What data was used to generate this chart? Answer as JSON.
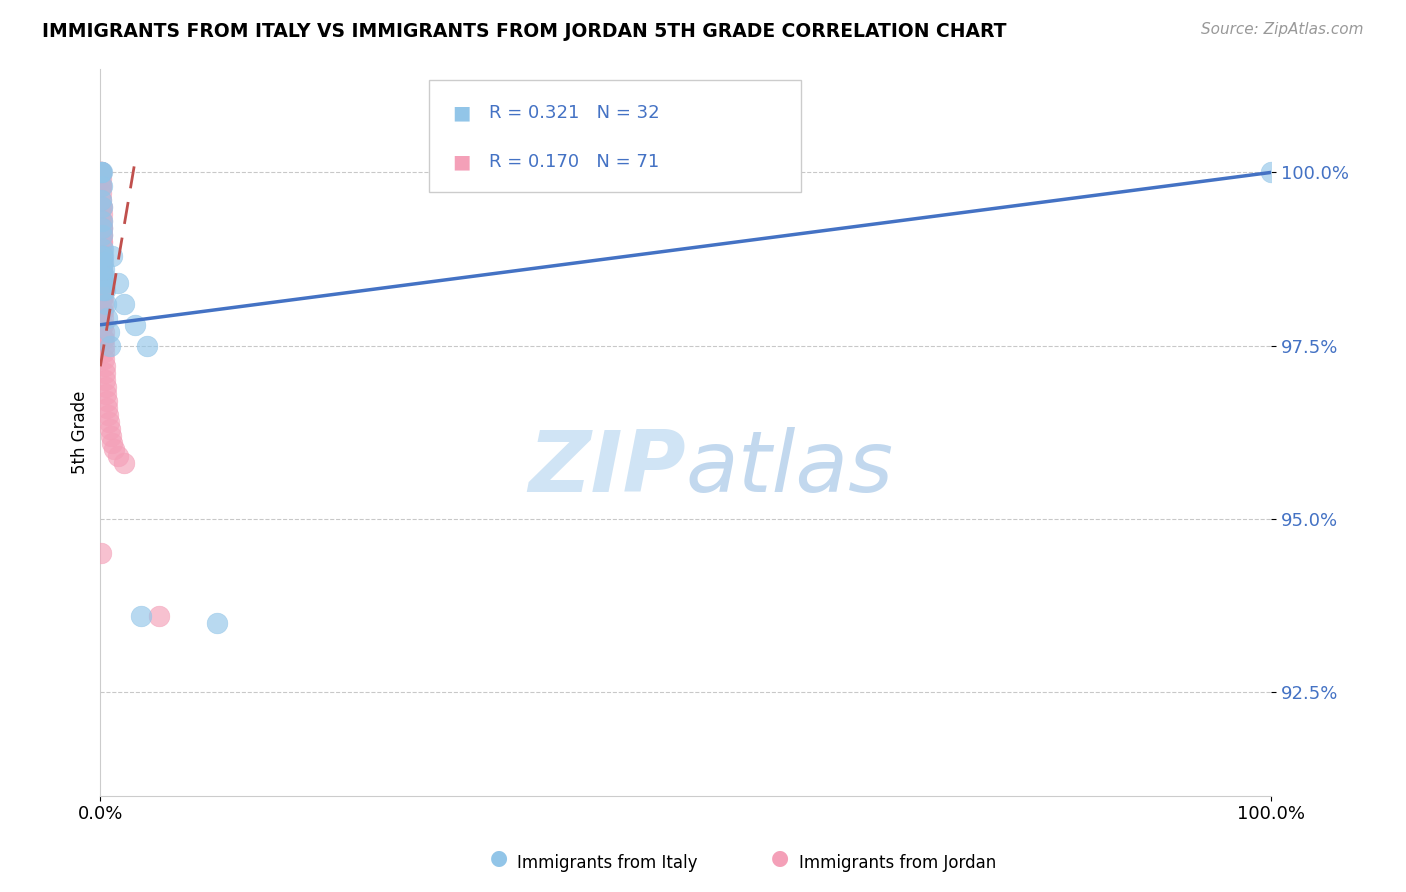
{
  "title": "IMMIGRANTS FROM ITALY VS IMMIGRANTS FROM JORDAN 5TH GRADE CORRELATION CHART",
  "source": "Source: ZipAtlas.com",
  "ylabel": "5th Grade",
  "yticks": [
    92.5,
    95.0,
    97.5,
    100.0
  ],
  "ytick_labels": [
    "92.5%",
    "95.0%",
    "97.5%",
    "100.0%"
  ],
  "xlim": [
    0.0,
    100.0
  ],
  "ylim": [
    91.0,
    101.5
  ],
  "legend_italy_R": "0.321",
  "legend_italy_N": "32",
  "legend_jordan_R": "0.170",
  "legend_jordan_N": "71",
  "color_italy": "#92C5E8",
  "color_jordan": "#F4A0B8",
  "color_italy_line": "#4472C4",
  "color_jordan_line": "#C0504D",
  "color_watermark": "#D0E4F5",
  "italy_x": [
    0.05,
    0.08,
    0.1,
    0.12,
    0.14,
    0.16,
    0.18,
    0.2,
    0.22,
    0.25,
    0.28,
    0.3,
    0.35,
    0.4,
    0.5,
    0.6,
    0.7,
    0.8,
    1.0,
    1.5,
    2.0,
    3.0,
    4.0,
    0.08,
    0.1,
    0.12,
    0.15,
    0.18,
    0.25,
    3.5,
    10.0,
    100.0
  ],
  "italy_y": [
    100.0,
    100.0,
    99.8,
    100.0,
    99.5,
    99.3,
    99.1,
    98.9,
    98.8,
    98.7,
    98.6,
    98.5,
    98.4,
    98.3,
    98.1,
    97.9,
    97.7,
    97.5,
    98.8,
    98.4,
    98.1,
    97.8,
    97.5,
    99.6,
    99.2,
    98.8,
    98.6,
    98.5,
    98.3,
    93.6,
    93.5,
    100.0
  ],
  "jordan_x": [
    0.02,
    0.03,
    0.04,
    0.05,
    0.05,
    0.06,
    0.07,
    0.08,
    0.08,
    0.09,
    0.1,
    0.1,
    0.11,
    0.12,
    0.12,
    0.13,
    0.14,
    0.15,
    0.15,
    0.16,
    0.17,
    0.18,
    0.18,
    0.19,
    0.2,
    0.2,
    0.22,
    0.22,
    0.25,
    0.25,
    0.28,
    0.3,
    0.3,
    0.32,
    0.35,
    0.38,
    0.4,
    0.4,
    0.45,
    0.5,
    0.55,
    0.6,
    0.65,
    0.7,
    0.8,
    0.9,
    1.0,
    1.2,
    1.5,
    2.0,
    0.05,
    0.06,
    0.07,
    0.08,
    0.09,
    0.1,
    0.12,
    0.15,
    0.18,
    0.2,
    0.08,
    0.1,
    0.12,
    0.08,
    0.09,
    0.1,
    0.12,
    0.14,
    0.16,
    0.08,
    5.0
  ],
  "jordan_y": [
    100.0,
    100.0,
    100.0,
    100.0,
    99.9,
    99.8,
    99.8,
    99.7,
    99.6,
    99.5,
    99.5,
    99.4,
    99.3,
    99.2,
    99.2,
    99.1,
    99.0,
    98.9,
    98.8,
    98.7,
    98.6,
    98.5,
    98.5,
    98.4,
    98.3,
    98.2,
    98.1,
    98.0,
    97.9,
    97.8,
    97.7,
    97.6,
    97.5,
    97.4,
    97.3,
    97.2,
    97.1,
    97.0,
    96.9,
    96.8,
    96.7,
    96.6,
    96.5,
    96.4,
    96.3,
    96.2,
    96.1,
    96.0,
    95.9,
    95.8,
    99.0,
    98.9,
    98.7,
    98.6,
    98.5,
    98.4,
    98.2,
    98.0,
    97.8,
    97.6,
    99.3,
    99.1,
    99.0,
    99.2,
    99.0,
    98.8,
    98.7,
    98.5,
    98.3,
    94.5,
    93.6
  ],
  "italy_trend_x": [
    0.0,
    100.0
  ],
  "italy_trend_y": [
    97.8,
    100.0
  ],
  "jordan_trend_x": [
    0.0,
    3.0
  ],
  "jordan_trend_y": [
    97.2,
    100.2
  ]
}
